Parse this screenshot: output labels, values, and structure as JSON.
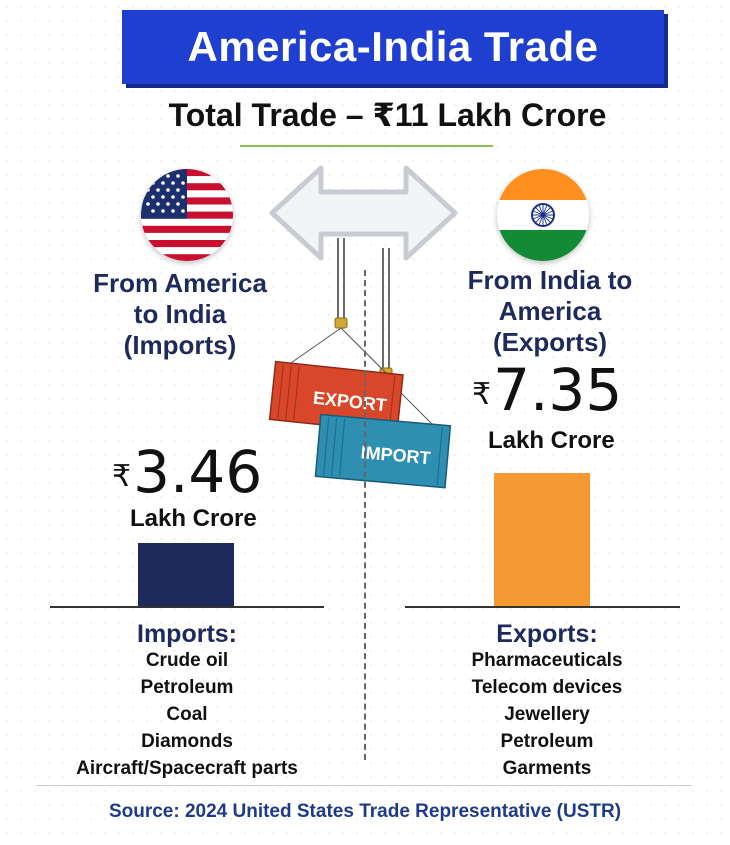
{
  "title": "America-India Trade",
  "subtitle": "Total Trade – ₹11 Lakh Crore",
  "left": {
    "heading_lines": [
      "From America",
      "to India",
      "(Imports)"
    ],
    "currency": "₹",
    "value": "3.46",
    "unit": "Lakh Crore",
    "list_title": "Imports:",
    "items": [
      "Crude oil",
      "Petroleum",
      "Coal",
      "Diamonds",
      "Aircraft/Spacecraft parts"
    ]
  },
  "right": {
    "heading_lines": [
      "From India to",
      "America",
      "(Exports)"
    ],
    "currency": "₹",
    "value": "7.35",
    "unit": "Lakh Crore",
    "list_title": "Exports:",
    "items": [
      "Pharmaceuticals",
      "Telecom devices",
      "Jewellery",
      "Petroleum",
      "Garments"
    ]
  },
  "containers": {
    "top_label": "EXPORT",
    "bottom_label": "IMPORT"
  },
  "source": "Source: 2024 United States Trade Representative (USTR)",
  "chart_data": {
    "type": "bar",
    "categories": [
      "From America to India (Imports)",
      "From India to America (Exports)"
    ],
    "values": [
      3.46,
      7.35
    ],
    "unit": "Lakh Crore",
    "colors": [
      "#1f2a5c",
      "#f59a33"
    ]
  }
}
